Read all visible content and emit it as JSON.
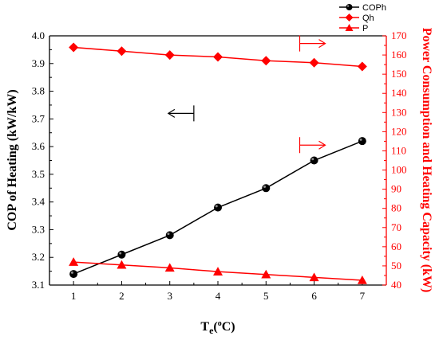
{
  "chart_data": {
    "type": "line",
    "x": [
      1,
      2,
      3,
      4,
      5,
      6,
      7
    ],
    "xlim": [
      0.5,
      7.5
    ],
    "xticks": [
      "1",
      "2",
      "3",
      "4",
      "5",
      "6",
      "7"
    ],
    "xlabel_main": "T",
    "xlabel_sub": "e",
    "xlabel_rest": "(",
    "xlabel_sup": "o",
    "xlabel_unit": "C)",
    "ylabel_left": "COP of Heating (kW/kW)",
    "ylabel_right": "Power Consumption and Heating Capacity (kW)",
    "ylim_left": [
      3.1,
      4.0
    ],
    "ylim_right": [
      40,
      170
    ],
    "yticks_left": [
      "3.1",
      "3.2",
      "3.3",
      "3.4",
      "3.5",
      "3.6",
      "3.7",
      "3.8",
      "3.9",
      "4.0"
    ],
    "yticks_right": [
      "40",
      "50",
      "60",
      "70",
      "80",
      "90",
      "100",
      "110",
      "120",
      "130",
      "140",
      "150",
      "160",
      "170"
    ],
    "left_axis_color": "#000000",
    "right_axis_color": "#ff0000",
    "series": [
      {
        "name": "COPh",
        "axis": "left",
        "marker": "circle",
        "color": "#000000",
        "values": [
          3.14,
          3.21,
          3.28,
          3.38,
          3.45,
          3.55,
          3.62
        ]
      },
      {
        "name": "Qh",
        "axis": "right",
        "marker": "diamond",
        "color": "#ff0000",
        "values": [
          164,
          162,
          160,
          159,
          157,
          156,
          154
        ]
      },
      {
        "name": "P",
        "axis": "right",
        "marker": "triangle",
        "color": "#ff0000",
        "values": [
          52,
          50.5,
          49,
          47,
          45.5,
          44,
          42.5
        ]
      }
    ],
    "legend_position": "top-right",
    "grid": false
  }
}
